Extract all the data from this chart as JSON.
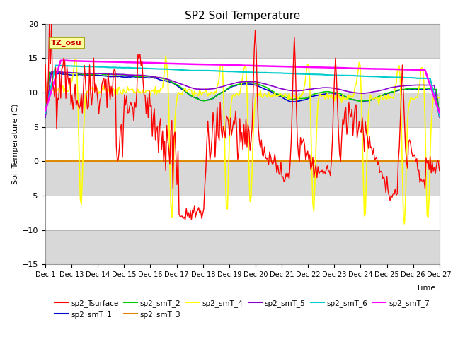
{
  "title": "SP2 Soil Temperature",
  "ylabel": "Soil Temperature (C)",
  "xlabel": "Time",
  "ylim": [
    -15,
    20
  ],
  "colors": {
    "sp2_Tsurface": "#ff0000",
    "sp2_smT_1": "#0000cc",
    "sp2_smT_2": "#00cc00",
    "sp2_smT_3": "#dd8800",
    "sp2_smT_4": "#ffff00",
    "sp2_smT_5": "#8800cc",
    "sp2_smT_6": "#00cccc",
    "sp2_smT_7": "#ff00ff"
  },
  "tz_label": "TZ_osu",
  "background_color": "#ffffff",
  "plot_bg_light": "#e8e8e8",
  "plot_bg_dark": "#d0d0d0",
  "zero_line_color": "#dd8800",
  "xtick_labels": [
    "Dec 1",
    "Dec 13",
    "Dec 14",
    "Dec 15",
    "Dec 16",
    "Dec 17",
    "Dec 18",
    "Dec 19",
    "Dec 20",
    "Dec 21",
    "Dec 22",
    "Dec 23",
    "Dec 24",
    "Dec 25",
    "Dec 26",
    "Dec 27"
  ],
  "legend_entries": [
    [
      "sp2_Tsurface",
      "#ff0000"
    ],
    [
      "sp2_smT_1",
      "#0000cc"
    ],
    [
      "sp2_smT_2",
      "#00cc00"
    ],
    [
      "sp2_smT_3",
      "#dd8800"
    ],
    [
      "sp2_smT_4",
      "#ffff00"
    ],
    [
      "sp2_smT_5",
      "#8800cc"
    ],
    [
      "sp2_smT_6",
      "#00cccc"
    ],
    [
      "sp2_smT_7",
      "#ff00ff"
    ]
  ]
}
